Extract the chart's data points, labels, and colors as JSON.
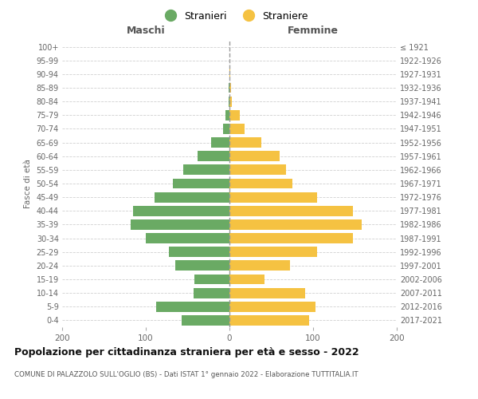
{
  "age_groups": [
    "0-4",
    "5-9",
    "10-14",
    "15-19",
    "20-24",
    "25-29",
    "30-34",
    "35-39",
    "40-44",
    "45-49",
    "50-54",
    "55-59",
    "60-64",
    "65-69",
    "70-74",
    "75-79",
    "80-84",
    "85-89",
    "90-94",
    "95-99",
    "100+"
  ],
  "birth_years": [
    "2017-2021",
    "2012-2016",
    "2007-2011",
    "2002-2006",
    "1997-2001",
    "1992-1996",
    "1987-1991",
    "1982-1986",
    "1977-1981",
    "1972-1976",
    "1967-1971",
    "1962-1966",
    "1957-1961",
    "1952-1956",
    "1947-1951",
    "1942-1946",
    "1937-1941",
    "1932-1936",
    "1927-1931",
    "1922-1926",
    "≤ 1921"
  ],
  "maschi": [
    57,
    88,
    43,
    42,
    65,
    72,
    100,
    118,
    115,
    90,
    68,
    55,
    38,
    22,
    8,
    5,
    1,
    1,
    0,
    0,
    0
  ],
  "femmine": [
    95,
    103,
    90,
    42,
    72,
    105,
    148,
    158,
    148,
    105,
    75,
    68,
    60,
    38,
    18,
    12,
    3,
    2,
    1,
    0,
    0
  ],
  "maschi_color": "#6aaa64",
  "femmine_color": "#f5c242",
  "title": "Popolazione per cittadinanza straniera per età e sesso - 2022",
  "subtitle": "COMUNE DI PALAZZOLO SULL'OGLIO (BS) - Dati ISTAT 1° gennaio 2022 - Elaborazione TUTTITALIA.IT",
  "legend_maschi": "Stranieri",
  "legend_femmine": "Straniere",
  "xlabel_left": "Maschi",
  "xlabel_right": "Femmine",
  "ylabel_left": "Fasce di età",
  "xlim": 200,
  "background_color": "#ffffff",
  "grid_color": "#d0d0d0"
}
